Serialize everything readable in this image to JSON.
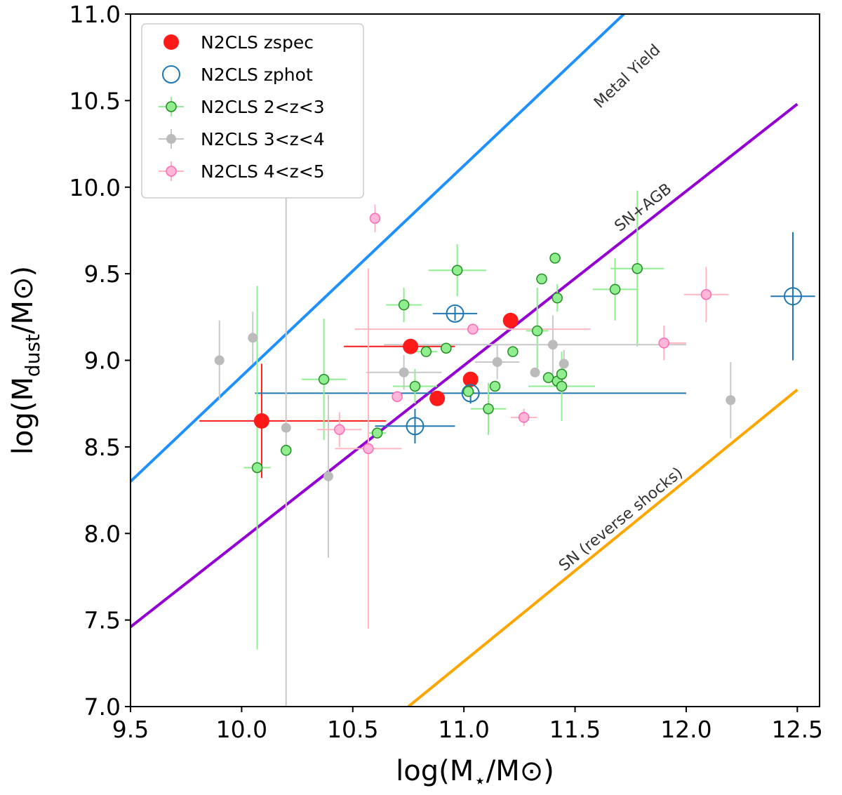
{
  "chart_data": {
    "type": "scatter",
    "title": "",
    "xlabel": {
      "pre": "log(M",
      "sub": "⋆",
      "post": "/M⊙)"
    },
    "ylabel": {
      "pre": "log(M",
      "sub": "dust",
      "post": "/M⊙)"
    },
    "xlim": [
      9.5,
      12.6
    ],
    "ylim": [
      7.0,
      11.0
    ],
    "xticks": [
      "9.5",
      "10.0",
      "10.5",
      "11.0",
      "11.5",
      "12.0",
      "12.5"
    ],
    "yticks": [
      "7.0",
      "7.5",
      "8.0",
      "8.5",
      "9.0",
      "9.5",
      "10.0",
      "10.5",
      "11.0"
    ],
    "grid": false,
    "legend_position": "upper-left",
    "lines": [
      {
        "name": "Metal Yield",
        "color": "#1e90ff",
        "x": [
          9.5,
          11.72
        ],
        "y": [
          8.3,
          11.0
        ],
        "label_at": [
          11.75,
          10.62
        ]
      },
      {
        "name": "SN+AGB",
        "color": "#9400d3",
        "x": [
          9.5,
          12.5
        ],
        "y": [
          7.46,
          10.48
        ],
        "label_at": [
          11.82,
          9.86
        ]
      },
      {
        "name": "SN (reverse shocks)",
        "color": "#ffa500",
        "x": [
          10.75,
          12.5
        ],
        "y": [
          7.0,
          8.83
        ],
        "label_at": [
          11.72,
          8.06
        ]
      }
    ],
    "series": [
      {
        "name": "N2CLS zspec",
        "marker": "filled",
        "color": "#ff1a1a",
        "size": 11,
        "points": [
          {
            "x": 10.09,
            "y": 8.65,
            "xerr": [
              0.28,
              0.56
            ],
            "yerr": [
              0.33,
              0.33
            ]
          },
          {
            "x": 10.76,
            "y": 9.08,
            "xerr": [
              0.3,
              0.2
            ],
            "yerr": [
              0,
              0
            ]
          },
          {
            "x": 10.88,
            "y": 8.78,
            "xerr": [
              0,
              0
            ],
            "yerr": [
              0,
              0
            ]
          },
          {
            "x": 11.03,
            "y": 8.89,
            "xerr": [
              0,
              0
            ],
            "yerr": [
              0,
              0
            ]
          },
          {
            "x": 11.21,
            "y": 9.23,
            "xerr": [
              0,
              0
            ],
            "yerr": [
              0,
              0
            ]
          }
        ]
      },
      {
        "name": "N2CLS zphot",
        "marker": "open",
        "color": "#1f77b4",
        "size": 12,
        "points": [
          {
            "x": 10.78,
            "y": 8.62,
            "xerr": [
              0.18,
              0.18
            ],
            "yerr": [
              0.1,
              0.1
            ]
          },
          {
            "x": 10.96,
            "y": 9.27,
            "xerr": [
              0.1,
              0.1
            ],
            "yerr": [
              0.04,
              0.04
            ]
          },
          {
            "x": 11.03,
            "y": 8.81,
            "xerr": [
              0.97,
              0.97
            ],
            "yerr": [
              0.06,
              0.06
            ]
          },
          {
            "x": 12.48,
            "y": 9.37,
            "xerr": [
              0.1,
              0.1
            ],
            "yerr": [
              0.37,
              0.37
            ]
          }
        ]
      },
      {
        "name": "N2CLS 2<z<3",
        "marker": "filled-edge",
        "color": "#90ee90",
        "edge": "#228b22",
        "bar": "#90ee90",
        "size": 7,
        "points": [
          {
            "x": 10.07,
            "y": 8.38,
            "xerr": [
              0.06,
              0.06
            ],
            "yerr": [
              1.05,
              1.05
            ]
          },
          {
            "x": 10.2,
            "y": 8.48,
            "xerr": [
              0,
              0
            ],
            "yerr": [
              0,
              0
            ]
          },
          {
            "x": 10.37,
            "y": 8.89,
            "xerr": [
              0.1,
              0.1
            ],
            "yerr": [
              0.35,
              0.35
            ]
          },
          {
            "x": 10.61,
            "y": 8.58,
            "xerr": [
              0.04,
              0.04
            ],
            "yerr": [
              0,
              0
            ]
          },
          {
            "x": 10.73,
            "y": 9.32,
            "xerr": [
              0.08,
              0.08
            ],
            "yerr": [
              0.1,
              0.1
            ]
          },
          {
            "x": 10.78,
            "y": 8.85,
            "xerr": [
              0.1,
              0.1
            ],
            "yerr": [
              0.1,
              0.1
            ]
          },
          {
            "x": 10.83,
            "y": 9.05,
            "xerr": [
              0.05,
              0.05
            ],
            "yerr": [
              0,
              0
            ]
          },
          {
            "x": 10.92,
            "y": 9.07,
            "xerr": [
              0,
              0
            ],
            "yerr": [
              0,
              0
            ]
          },
          {
            "x": 10.97,
            "y": 9.52,
            "xerr": [
              0.13,
              0.13
            ],
            "yerr": [
              0.15,
              0.15
            ]
          },
          {
            "x": 11.02,
            "y": 8.82,
            "xerr": [
              0,
              0
            ],
            "yerr": [
              0,
              0
            ]
          },
          {
            "x": 11.11,
            "y": 8.72,
            "xerr": [
              0.08,
              0.08
            ],
            "yerr": [
              0.15,
              0.15
            ]
          },
          {
            "x": 11.14,
            "y": 8.85,
            "xerr": [
              0,
              0
            ],
            "yerr": [
              0,
              0
            ]
          },
          {
            "x": 11.22,
            "y": 9.05,
            "xerr": [
              0,
              0
            ],
            "yerr": [
              0,
              0
            ]
          },
          {
            "x": 11.33,
            "y": 9.17,
            "xerr": [
              0.05,
              0.05
            ],
            "yerr": [
              0.25,
              0.25
            ]
          },
          {
            "x": 11.35,
            "y": 9.47,
            "xerr": [
              0,
              0
            ],
            "yerr": [
              0,
              0
            ]
          },
          {
            "x": 11.38,
            "y": 8.9,
            "xerr": [
              0,
              0
            ],
            "yerr": [
              0,
              0
            ]
          },
          {
            "x": 11.41,
            "y": 9.59,
            "xerr": [
              0,
              0
            ],
            "yerr": [
              0,
              0
            ]
          },
          {
            "x": 11.42,
            "y": 9.36,
            "xerr": [
              0,
              0
            ],
            "yerr": [
              0.08,
              0.08
            ]
          },
          {
            "x": 11.42,
            "y": 8.88,
            "xerr": [
              0,
              0
            ],
            "yerr": [
              0,
              0
            ]
          },
          {
            "x": 11.44,
            "y": 8.85,
            "xerr": [
              0.15,
              0.15
            ],
            "yerr": [
              0.2,
              0.2
            ]
          },
          {
            "x": 11.44,
            "y": 8.92,
            "xerr": [
              0,
              0
            ],
            "yerr": [
              0,
              0
            ]
          },
          {
            "x": 11.68,
            "y": 9.41,
            "xerr": [
              0.1,
              0.1
            ],
            "yerr": [
              0.18,
              0.18
            ]
          },
          {
            "x": 11.78,
            "y": 9.53,
            "xerr": [
              0.12,
              0.12
            ],
            "yerr": [
              0.45,
              0.45
            ]
          }
        ]
      },
      {
        "name": "N2CLS 3<z<4",
        "marker": "filled",
        "color": "#bbbbbb",
        "bar": "#c8c8c8",
        "size": 7,
        "points": [
          {
            "x": 9.9,
            "y": 9.0,
            "xerr": [
              0,
              0
            ],
            "yerr": [
              0.23,
              0.23
            ]
          },
          {
            "x": 10.05,
            "y": 9.13,
            "xerr": [
              0,
              0
            ],
            "yerr": [
              0.15,
              0.15
            ]
          },
          {
            "x": 10.2,
            "y": 8.61,
            "xerr": [
              0,
              0
            ],
            "yerr": [
              1.61,
              1.61
            ]
          },
          {
            "x": 10.39,
            "y": 8.33,
            "xerr": [
              0,
              0
            ],
            "yerr": [
              0.47,
              0.47
            ]
          },
          {
            "x": 10.73,
            "y": 8.93,
            "xerr": [
              0.17,
              0.17
            ],
            "yerr": [
              0.1,
              0.1
            ]
          },
          {
            "x": 11.15,
            "y": 8.99,
            "xerr": [
              0.1,
              0.1
            ],
            "yerr": [
              0.1,
              0.1
            ]
          },
          {
            "x": 11.32,
            "y": 8.93,
            "xerr": [
              0,
              0
            ],
            "yerr": [
              0,
              0
            ]
          },
          {
            "x": 11.4,
            "y": 9.09,
            "xerr": [
              0.76,
              0.6
            ],
            "yerr": [
              0.17,
              0.17
            ]
          },
          {
            "x": 11.45,
            "y": 8.98,
            "xerr": [
              0,
              0
            ],
            "yerr": [
              0.08,
              0.08
            ]
          },
          {
            "x": 12.2,
            "y": 8.77,
            "xerr": [
              0,
              0
            ],
            "yerr": [
              0.22,
              0.22
            ]
          }
        ]
      },
      {
        "name": "N2CLS 4<z<5",
        "marker": "filled-edge",
        "color": "#ffb6d9",
        "edge": "#ff69b4",
        "bar": "#ffb6c1",
        "size": 7,
        "points": [
          {
            "x": 10.44,
            "y": 8.6,
            "xerr": [
              0.1,
              0.1
            ],
            "yerr": [
              0.1,
              0.1
            ]
          },
          {
            "x": 10.57,
            "y": 8.49,
            "xerr": [
              0.15,
              0.15
            ],
            "yerr": [
              1.04,
              1.04
            ]
          },
          {
            "x": 10.6,
            "y": 9.82,
            "xerr": [
              0,
              0
            ],
            "yerr": [
              0.08,
              0.08
            ]
          },
          {
            "x": 10.7,
            "y": 8.79,
            "xerr": [
              0,
              0
            ],
            "yerr": [
              0,
              0
            ]
          },
          {
            "x": 11.04,
            "y": 9.18,
            "xerr": [
              0.53,
              0.53
            ],
            "yerr": [
              0,
              0
            ]
          },
          {
            "x": 11.27,
            "y": 8.67,
            "xerr": [
              0.06,
              0.06
            ],
            "yerr": [
              0.05,
              0.05
            ]
          },
          {
            "x": 11.9,
            "y": 9.1,
            "xerr": [
              0,
              0.1
            ],
            "yerr": [
              0.1,
              0.1
            ]
          },
          {
            "x": 12.09,
            "y": 9.38,
            "xerr": [
              0.1,
              0.1
            ],
            "yerr": [
              0.16,
              0.16
            ]
          }
        ]
      }
    ]
  }
}
